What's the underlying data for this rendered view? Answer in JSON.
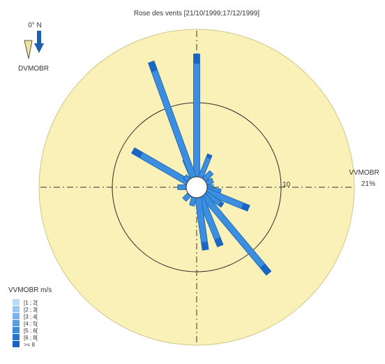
{
  "chart_data": {
    "type": "wind-rose",
    "title": "Rose des vents [21/10/1999;17/12/1999]",
    "north_marker": {
      "label": "0° N",
      "direction_variable": "DVMOBR"
    },
    "radial_axis": {
      "variable": "VVMOBR",
      "max_percent_label": "21%",
      "ring_values": [
        10,
        21
      ],
      "ring_value_label": "10",
      "unit": "%"
    },
    "legend": {
      "title": "VVMOBR m/s",
      "position": "bottom-left",
      "classes": [
        {
          "label": "[1 ; 2[",
          "color": "#bcdaf5"
        },
        {
          "label": "[2 ; 3[",
          "color": "#9cc7ef"
        },
        {
          "label": "[3 ; 4[",
          "color": "#7ab3ea"
        },
        {
          "label": "[4 ; 5[",
          "color": "#5a9fe4"
        },
        {
          "label": "[5 ; 6[",
          "color": "#3d8bdc"
        },
        {
          "label": "[6 ; 8[",
          "color": "#2676d0"
        },
        {
          "label": ">= 8",
          "color": "#1562c0"
        }
      ]
    },
    "colors": {
      "background": "#f9f1b7",
      "petal": "#3b8ee0",
      "petal_edge": "#1b5faa",
      "ring": "#2b2b2b"
    },
    "petals": [
      {
        "direction_deg": 0,
        "percent": 17.5
      },
      {
        "direction_deg": 22,
        "percent": 3.5
      },
      {
        "direction_deg": 45,
        "percent": 1.5
      },
      {
        "direction_deg": 67,
        "percent": 1.0
      },
      {
        "direction_deg": 90,
        "percent": 0.9
      },
      {
        "direction_deg": 100,
        "percent": 2.0
      },
      {
        "direction_deg": 112,
        "percent": 6.5
      },
      {
        "direction_deg": 125,
        "percent": 3.0
      },
      {
        "direction_deg": 140,
        "percent": 14.5
      },
      {
        "direction_deg": 158,
        "percent": 7.5
      },
      {
        "direction_deg": 172,
        "percent": 7.5
      },
      {
        "direction_deg": 195,
        "percent": 1.2
      },
      {
        "direction_deg": 225,
        "percent": 1.0
      },
      {
        "direction_deg": 270,
        "percent": 1.2
      },
      {
        "direction_deg": 300,
        "percent": 9.0
      },
      {
        "direction_deg": 312,
        "percent": 0.8
      },
      {
        "direction_deg": 337,
        "percent": 2.8
      },
      {
        "direction_deg": 340,
        "percent": 17.5
      }
    ]
  }
}
